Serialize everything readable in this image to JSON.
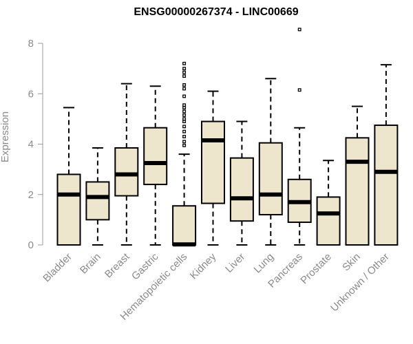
{
  "chart_data": {
    "type": "box",
    "title": "ENSG00000267374 - LINC00669",
    "xlabel": "",
    "ylabel": "Expression",
    "ylim": [
      0,
      8.3
    ],
    "yticks": [
      0,
      2,
      4,
      6,
      8
    ],
    "grid": false,
    "legend": "none",
    "colors": {
      "box_fill": "#ede6cc",
      "stroke": "#000000",
      "axis_text": "#8a8a8a"
    },
    "categories": [
      "Bladder",
      "Brain",
      "Breast",
      "Gastric",
      "Hematopoietic cells",
      "Kidney",
      "Liver",
      "Lung",
      "Pancreas",
      "Prostate",
      "Skin",
      "Unknown / Other"
    ],
    "boxes": [
      {
        "category": "Bladder",
        "whisker_low": 0,
        "q1": 0,
        "median": 2.0,
        "q3": 2.8,
        "whisker_high": 5.45,
        "outliers": []
      },
      {
        "category": "Brain",
        "whisker_low": 0,
        "q1": 1.0,
        "median": 1.9,
        "q3": 2.5,
        "whisker_high": 3.85,
        "outliers": []
      },
      {
        "category": "Breast",
        "whisker_low": 0,
        "q1": 1.95,
        "median": 2.8,
        "q3": 3.85,
        "whisker_high": 6.4,
        "outliers": []
      },
      {
        "category": "Gastric",
        "whisker_low": 0,
        "q1": 2.4,
        "median": 3.25,
        "q3": 4.65,
        "whisker_high": 6.3,
        "outliers": []
      },
      {
        "category": "Hematopoietic cells",
        "whisker_low": 0,
        "q1": 0,
        "median": 0.02,
        "q3": 1.55,
        "whisker_high": 3.6,
        "outliers": [
          3.95,
          4.1,
          4.3,
          4.5,
          4.7,
          4.9,
          5.0,
          5.15,
          5.3,
          5.45,
          5.55,
          5.9,
          6.2,
          6.35,
          6.7,
          6.85,
          7.0,
          7.2
        ]
      },
      {
        "category": "Kidney",
        "whisker_low": 0,
        "q1": 1.65,
        "median": 4.15,
        "q3": 4.9,
        "whisker_high": 6.1,
        "outliers": []
      },
      {
        "category": "Liver",
        "whisker_low": 0,
        "q1": 0.95,
        "median": 1.85,
        "q3": 3.45,
        "whisker_high": 4.9,
        "outliers": []
      },
      {
        "category": "Lung",
        "whisker_low": 0,
        "q1": 1.2,
        "median": 2.0,
        "q3": 4.05,
        "whisker_high": 6.6,
        "outliers": []
      },
      {
        "category": "Pancreas",
        "whisker_low": 0,
        "q1": 0.9,
        "median": 1.7,
        "q3": 2.6,
        "whisker_high": 4.65,
        "outliers": [
          6.15,
          8.55
        ]
      },
      {
        "category": "Prostate",
        "whisker_low": 0,
        "q1": 0,
        "median": 1.25,
        "q3": 1.9,
        "whisker_high": 3.35,
        "outliers": []
      },
      {
        "category": "Skin",
        "whisker_low": 0,
        "q1": 0,
        "median": 3.3,
        "q3": 4.25,
        "whisker_high": 5.5,
        "outliers": []
      },
      {
        "category": "Unknown / Other",
        "whisker_low": 0,
        "q1": 0,
        "median": 2.9,
        "q3": 4.75,
        "whisker_high": 7.15,
        "outliers": []
      }
    ]
  }
}
